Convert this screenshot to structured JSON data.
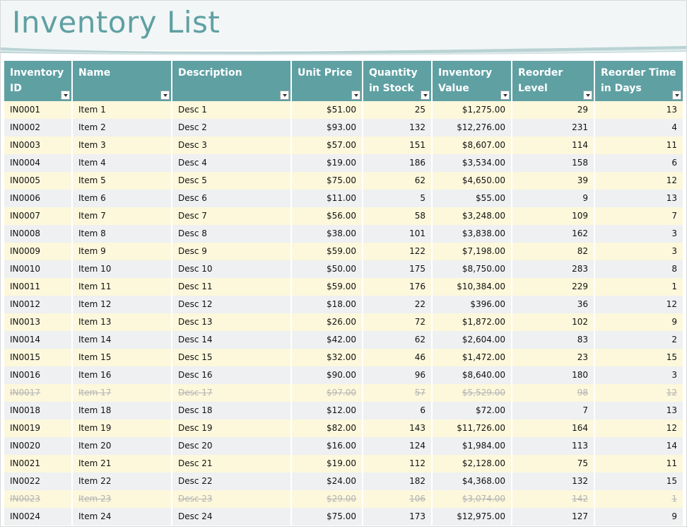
{
  "title": "Inventory List",
  "colors": {
    "accent": "#5fa0a3",
    "row_yellow": "#fdf8dc",
    "row_gray": "#eef0f1"
  },
  "columns": [
    {
      "key": "id",
      "label": "Inventory ID"
    },
    {
      "key": "name",
      "label": "Name"
    },
    {
      "key": "desc",
      "label": "Description"
    },
    {
      "key": "price",
      "label": "Unit Price"
    },
    {
      "key": "qty",
      "label": "Quantity in Stock"
    },
    {
      "key": "value",
      "label": "Inventory Value"
    },
    {
      "key": "reorder",
      "label": "Reorder Level"
    },
    {
      "key": "days",
      "label": "Reorder Time in Days"
    }
  ],
  "rows": [
    {
      "id": "IN0001",
      "name": "Item 1",
      "desc": "Desc 1",
      "price": "$51.00",
      "qty": "25",
      "value": "$1,275.00",
      "reorder": "29",
      "days": "13",
      "struck": false
    },
    {
      "id": "IN0002",
      "name": "Item 2",
      "desc": "Desc 2",
      "price": "$93.00",
      "qty": "132",
      "value": "$12,276.00",
      "reorder": "231",
      "days": "4",
      "struck": false
    },
    {
      "id": "IN0003",
      "name": "Item 3",
      "desc": "Desc 3",
      "price": "$57.00",
      "qty": "151",
      "value": "$8,607.00",
      "reorder": "114",
      "days": "11",
      "struck": false
    },
    {
      "id": "IN0004",
      "name": "Item 4",
      "desc": "Desc 4",
      "price": "$19.00",
      "qty": "186",
      "value": "$3,534.00",
      "reorder": "158",
      "days": "6",
      "struck": false
    },
    {
      "id": "IN0005",
      "name": "Item 5",
      "desc": "Desc 5",
      "price": "$75.00",
      "qty": "62",
      "value": "$4,650.00",
      "reorder": "39",
      "days": "12",
      "struck": false
    },
    {
      "id": "IN0006",
      "name": "Item 6",
      "desc": "Desc 6",
      "price": "$11.00",
      "qty": "5",
      "value": "$55.00",
      "reorder": "9",
      "days": "13",
      "struck": false
    },
    {
      "id": "IN0007",
      "name": "Item 7",
      "desc": "Desc 7",
      "price": "$56.00",
      "qty": "58",
      "value": "$3,248.00",
      "reorder": "109",
      "days": "7",
      "struck": false
    },
    {
      "id": "IN0008",
      "name": "Item 8",
      "desc": "Desc 8",
      "price": "$38.00",
      "qty": "101",
      "value": "$3,838.00",
      "reorder": "162",
      "days": "3",
      "struck": false
    },
    {
      "id": "IN0009",
      "name": "Item 9",
      "desc": "Desc 9",
      "price": "$59.00",
      "qty": "122",
      "value": "$7,198.00",
      "reorder": "82",
      "days": "3",
      "struck": false
    },
    {
      "id": "IN0010",
      "name": "Item 10",
      "desc": "Desc 10",
      "price": "$50.00",
      "qty": "175",
      "value": "$8,750.00",
      "reorder": "283",
      "days": "8",
      "struck": false
    },
    {
      "id": "IN0011",
      "name": "Item 11",
      "desc": "Desc 11",
      "price": "$59.00",
      "qty": "176",
      "value": "$10,384.00",
      "reorder": "229",
      "days": "1",
      "struck": false
    },
    {
      "id": "IN0012",
      "name": "Item 12",
      "desc": "Desc 12",
      "price": "$18.00",
      "qty": "22",
      "value": "$396.00",
      "reorder": "36",
      "days": "12",
      "struck": false
    },
    {
      "id": "IN0013",
      "name": "Item 13",
      "desc": "Desc 13",
      "price": "$26.00",
      "qty": "72",
      "value": "$1,872.00",
      "reorder": "102",
      "days": "9",
      "struck": false
    },
    {
      "id": "IN0014",
      "name": "Item 14",
      "desc": "Desc 14",
      "price": "$42.00",
      "qty": "62",
      "value": "$2,604.00",
      "reorder": "83",
      "days": "2",
      "struck": false
    },
    {
      "id": "IN0015",
      "name": "Item 15",
      "desc": "Desc 15",
      "price": "$32.00",
      "qty": "46",
      "value": "$1,472.00",
      "reorder": "23",
      "days": "15",
      "struck": false
    },
    {
      "id": "IN0016",
      "name": "Item 16",
      "desc": "Desc 16",
      "price": "$90.00",
      "qty": "96",
      "value": "$8,640.00",
      "reorder": "180",
      "days": "3",
      "struck": false
    },
    {
      "id": "IN0017",
      "name": "Item 17",
      "desc": "Desc 17",
      "price": "$97.00",
      "qty": "57",
      "value": "$5,529.00",
      "reorder": "98",
      "days": "12",
      "struck": true
    },
    {
      "id": "IN0018",
      "name": "Item 18",
      "desc": "Desc 18",
      "price": "$12.00",
      "qty": "6",
      "value": "$72.00",
      "reorder": "7",
      "days": "13",
      "struck": false
    },
    {
      "id": "IN0019",
      "name": "Item 19",
      "desc": "Desc 19",
      "price": "$82.00",
      "qty": "143",
      "value": "$11,726.00",
      "reorder": "164",
      "days": "12",
      "struck": false
    },
    {
      "id": "IN0020",
      "name": "Item 20",
      "desc": "Desc 20",
      "price": "$16.00",
      "qty": "124",
      "value": "$1,984.00",
      "reorder": "113",
      "days": "14",
      "struck": false
    },
    {
      "id": "IN0021",
      "name": "Item 21",
      "desc": "Desc 21",
      "price": "$19.00",
      "qty": "112",
      "value": "$2,128.00",
      "reorder": "75",
      "days": "11",
      "struck": false
    },
    {
      "id": "IN0022",
      "name": "Item 22",
      "desc": "Desc 22",
      "price": "$24.00",
      "qty": "182",
      "value": "$4,368.00",
      "reorder": "132",
      "days": "15",
      "struck": false
    },
    {
      "id": "IN0023",
      "name": "Item 23",
      "desc": "Desc 23",
      "price": "$29.00",
      "qty": "106",
      "value": "$3,074.00",
      "reorder": "142",
      "days": "1",
      "struck": true
    },
    {
      "id": "IN0024",
      "name": "Item 24",
      "desc": "Desc 24",
      "price": "$75.00",
      "qty": "173",
      "value": "$12,975.00",
      "reorder": "127",
      "days": "9",
      "struck": false
    }
  ]
}
